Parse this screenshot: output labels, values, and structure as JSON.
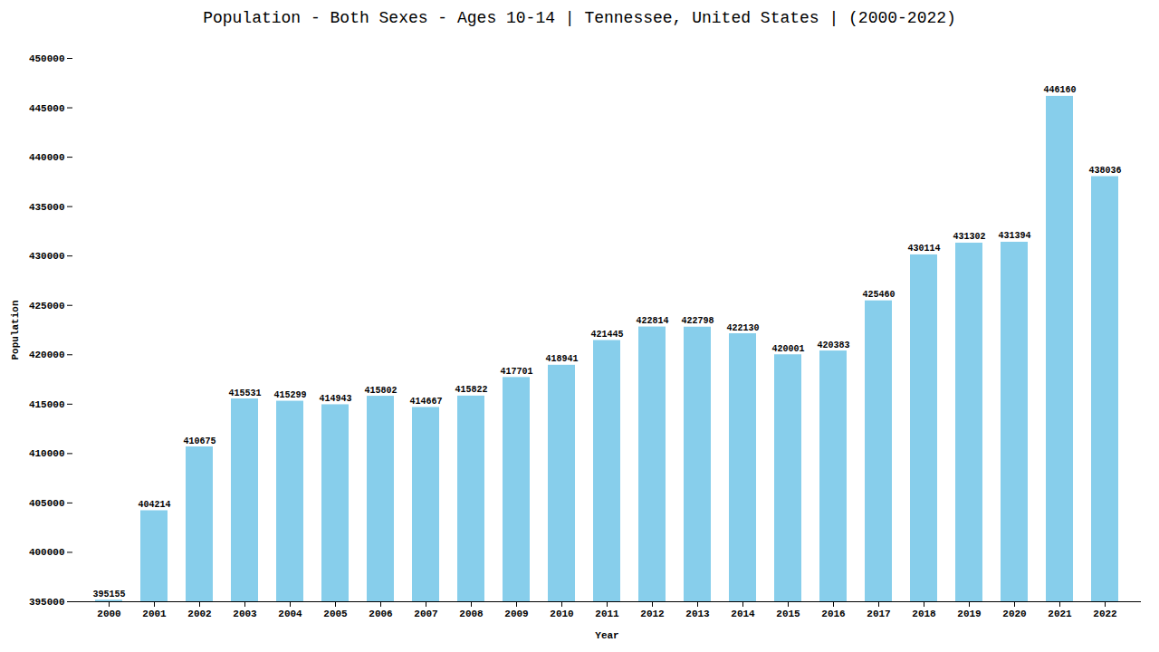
{
  "chart_data": {
    "type": "bar",
    "title": "Population - Both Sexes - Ages 10-14 | Tennessee, United States |  (2000-2022)",
    "x_label": "Year",
    "y_label": "Population",
    "categories": [
      "2000",
      "2001",
      "2002",
      "2003",
      "2004",
      "2005",
      "2006",
      "2007",
      "2008",
      "2009",
      "2010",
      "2011",
      "2012",
      "2013",
      "2014",
      "2015",
      "2016",
      "2017",
      "2018",
      "2019",
      "2020",
      "2021",
      "2022"
    ],
    "values": [
      395155,
      404214,
      410675,
      415531,
      415299,
      414943,
      415802,
      414667,
      415822,
      417701,
      418941,
      421445,
      422814,
      422798,
      422130,
      420001,
      420383,
      425460,
      430114,
      431302,
      431394,
      446160,
      438036
    ],
    "color": "#87CEEB",
    "ylim": [
      395000,
      450000
    ],
    "yticks": [
      395000,
      400000,
      405000,
      410000,
      415000,
      420000,
      425000,
      430000,
      435000,
      440000,
      445000,
      450000
    ],
    "grid": false,
    "data_labels": true
  }
}
